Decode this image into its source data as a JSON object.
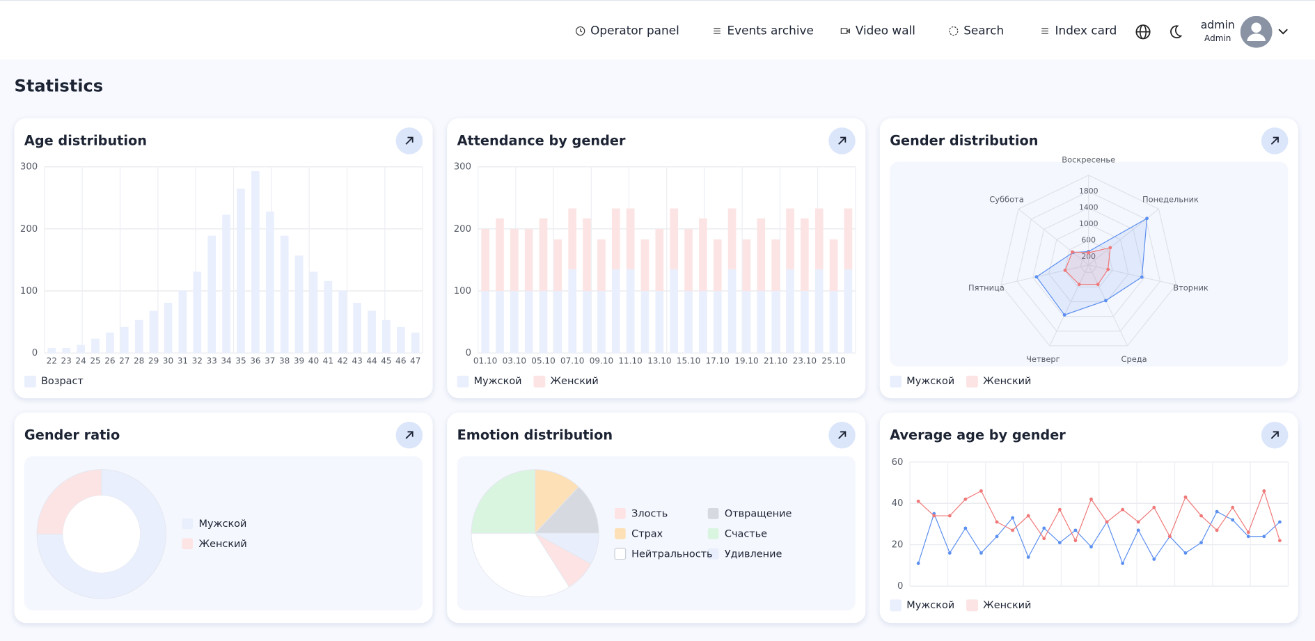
{
  "header": {
    "nav": [
      "Operator panel",
      "Events archive",
      "Video wall",
      "Search",
      "Index card"
    ],
    "user": {
      "name": "admin",
      "role": "Admin"
    }
  },
  "page_title": "Statistics",
  "chart_data": [
    {
      "type": "bar",
      "title": "Age distribution",
      "categories": [
        "22",
        "23",
        "24",
        "25",
        "26",
        "27",
        "28",
        "29",
        "30",
        "31",
        "32",
        "33",
        "34",
        "35",
        "36",
        "37",
        "38",
        "39",
        "40",
        "41",
        "42",
        "43",
        "44",
        "45",
        "46",
        "47"
      ],
      "series": [
        {
          "name": "Возраст",
          "color": "#e9effc",
          "values": [
            8,
            8,
            13,
            23,
            33,
            42,
            53,
            68,
            81,
            101,
            131,
            189,
            223,
            265,
            293,
            228,
            189,
            157,
            131,
            116,
            101,
            81,
            68,
            53,
            42,
            33
          ]
        }
      ],
      "ylim": [
        0,
        300
      ],
      "yticks": [
        0,
        100,
        200,
        300
      ],
      "grid": true,
      "legend": "bottom-left"
    },
    {
      "type": "bar",
      "title": "Attendance by gender",
      "stacked": true,
      "categories": [
        "01.10",
        null,
        "03.10",
        null,
        "05.10",
        null,
        "07.10",
        null,
        "09.10",
        null,
        "11.10",
        null,
        "13.10",
        null,
        "15.10",
        null,
        "17.10",
        null,
        "19.10",
        null,
        "21.10",
        null,
        "23.10",
        null,
        "25.10",
        null
      ],
      "series": [
        {
          "name": "Мужской",
          "color": "#e9effc",
          "values": [
            100,
            100,
            100,
            100,
            100,
            100,
            135,
            100,
            100,
            135,
            135,
            100,
            100,
            135,
            100,
            100,
            100,
            135,
            100,
            100,
            100,
            135,
            100,
            135,
            100,
            135
          ]
        },
        {
          "name": "Женский",
          "color": "#fde4e4",
          "values": [
            100,
            117,
            100,
            100,
            117,
            83,
            98,
            117,
            83,
            98,
            98,
            83,
            100,
            98,
            100,
            117,
            83,
            98,
            83,
            117,
            83,
            98,
            117,
            98,
            83,
            98
          ]
        }
      ],
      "ylim": [
        0,
        300
      ],
      "yticks": [
        0,
        100,
        200,
        300
      ],
      "grid": true,
      "legend": "bottom-left"
    },
    {
      "type": "radar",
      "title": "Gender distribution",
      "categories": [
        "Воскресенье",
        "Понедельник",
        "Вторник",
        "Среда",
        "Четверг",
        "Пятница",
        "Суббота"
      ],
      "series": [
        {
          "name": "Мужской",
          "color": "#5b8ff0",
          "values": [
            330,
            1830,
            1340,
            970,
            1360,
            1310,
            490
          ]
        },
        {
          "name": "Женский",
          "color": "#f07878",
          "values": [
            300,
            680,
            490,
            530,
            530,
            590,
            510
          ]
        }
      ],
      "rlim": [
        0,
        2200
      ],
      "rticks": [
        200,
        600,
        1000,
        1400,
        1800
      ],
      "legend": "bottom-left"
    },
    {
      "type": "donut",
      "title": "Gender ratio",
      "categories": [
        "Мужской",
        "Женский"
      ],
      "values": [
        75,
        25
      ],
      "colors": [
        "#e9effc",
        "#fde4e4"
      ],
      "legend": "right"
    },
    {
      "type": "pie",
      "title": "Emotion distribution",
      "categories": [
        "Страх",
        "Отвращение",
        "Удивление",
        "Злость",
        "Нейтральность",
        "Счастье"
      ],
      "values": [
        12,
        13,
        8,
        8,
        34,
        25
      ],
      "colors": [
        "#fde0b5",
        "#d6d9df",
        "#e8eefb",
        "#fde3e3",
        "#ffffff",
        "#d9f5e0"
      ],
      "legend": "right"
    },
    {
      "type": "line",
      "title": "Average age by gender",
      "series": [
        {
          "name": "Мужской",
          "color": "#5b8ff0",
          "values": [
            11,
            35,
            16,
            28,
            16,
            24,
            33,
            14,
            28,
            21,
            27,
            19,
            31,
            11,
            27,
            13,
            24,
            16,
            21,
            36,
            32,
            24,
            24,
            31
          ]
        },
        {
          "name": "Женский",
          "color": "#f07878",
          "values": [
            41,
            34,
            34,
            42,
            46,
            31,
            27,
            34,
            23,
            37,
            22,
            42,
            31,
            37,
            31,
            38,
            24,
            43,
            34,
            27,
            38,
            26,
            46,
            22
          ]
        }
      ],
      "ylim": [
        0,
        60
      ],
      "yticks": [
        0,
        20,
        40,
        60
      ],
      "grid": true,
      "legend": "bottom-left"
    }
  ]
}
